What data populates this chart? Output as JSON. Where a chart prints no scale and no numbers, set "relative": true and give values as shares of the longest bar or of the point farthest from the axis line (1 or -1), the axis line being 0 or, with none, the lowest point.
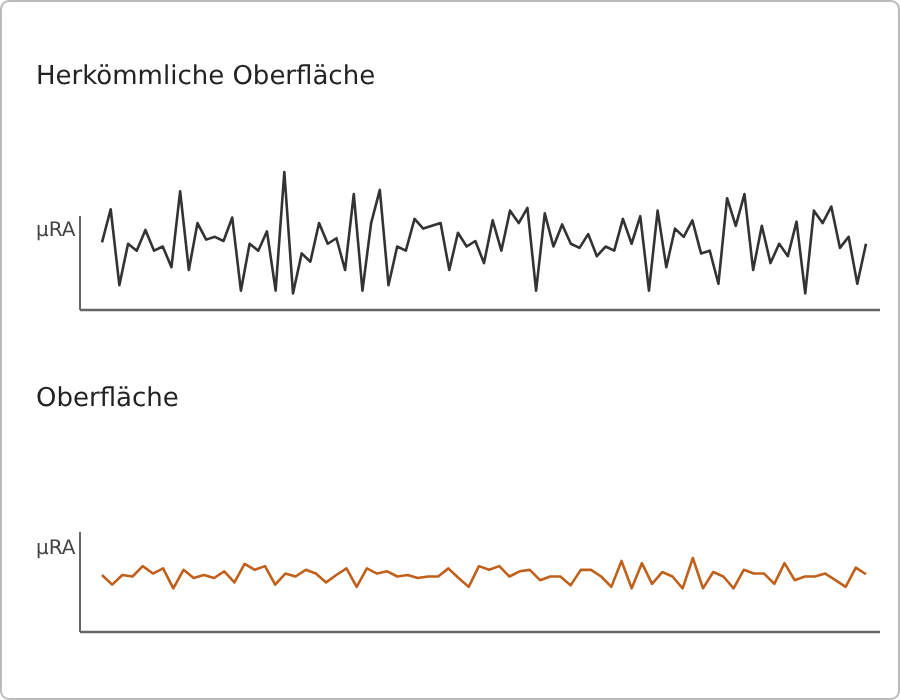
{
  "chart_data": [
    {
      "type": "line",
      "title": "Herkömmliche Oberfläche",
      "ylabel": "µRA",
      "relative": true,
      "categories": [
        null,
        null,
        null,
        null,
        null,
        null,
        null,
        null,
        null,
        null,
        null,
        null,
        null,
        null,
        null,
        null,
        null,
        null,
        null,
        null,
        null,
        null,
        null,
        null,
        null,
        null,
        null,
        null,
        null,
        null,
        null,
        null,
        null,
        null,
        null,
        null,
        null,
        null,
        null,
        null,
        null,
        null,
        null,
        null,
        null,
        null,
        null,
        null,
        null,
        null,
        null,
        null,
        null,
        null,
        null,
        null,
        null,
        null,
        null,
        null,
        null,
        null,
        null,
        null,
        null,
        null,
        null,
        null,
        null,
        null,
        null,
        null,
        null,
        null,
        null,
        null,
        null,
        null,
        null,
        null,
        null,
        null,
        null,
        null,
        null,
        null,
        null,
        null,
        null
      ],
      "series": [
        {
          "color": "#333333",
          "values": [
            0.49,
            0.73,
            0.18,
            0.48,
            0.43,
            0.58,
            0.43,
            0.46,
            0.31,
            0.86,
            0.29,
            0.63,
            0.51,
            0.53,
            0.5,
            0.67,
            0.14,
            0.48,
            0.43,
            0.57,
            0.14,
            1.0,
            0.12,
            0.41,
            0.35,
            0.63,
            0.48,
            0.52,
            0.29,
            0.84,
            0.14,
            0.63,
            0.87,
            0.18,
            0.46,
            0.43,
            0.66,
            0.59,
            0.61,
            0.63,
            0.29,
            0.56,
            0.46,
            0.5,
            0.34,
            0.65,
            0.43,
            0.72,
            0.63,
            0.74,
            0.14,
            0.7,
            0.46,
            0.62,
            0.48,
            0.45,
            0.55,
            0.39,
            0.46,
            0.43,
            0.66,
            0.48,
            0.68,
            0.14,
            0.72,
            0.31,
            0.59,
            0.53,
            0.65,
            0.41,
            0.43,
            0.19,
            0.81,
            0.61,
            0.84,
            0.29,
            0.61,
            0.34,
            0.48,
            0.39,
            0.64,
            0.12,
            0.72,
            0.63,
            0.75,
            0.45,
            0.53,
            0.19,
            0.48
          ]
        }
      ]
    },
    {
      "type": "line",
      "title": "Oberfläche",
      "ylabel": "µRA",
      "relative": true,
      "categories": [
        null,
        null,
        null,
        null,
        null,
        null,
        null,
        null,
        null,
        null,
        null,
        null,
        null,
        null,
        null,
        null,
        null,
        null,
        null,
        null,
        null,
        null,
        null,
        null,
        null,
        null,
        null,
        null,
        null,
        null,
        null,
        null,
        null,
        null,
        null,
        null,
        null,
        null,
        null,
        null,
        null,
        null,
        null,
        null,
        null,
        null,
        null,
        null,
        null,
        null,
        null,
        null,
        null,
        null,
        null,
        null,
        null,
        null,
        null,
        null,
        null,
        null,
        null,
        null,
        null,
        null,
        null,
        null,
        null,
        null,
        null,
        null,
        null,
        null,
        null,
        null
      ],
      "series": [
        {
          "color": "#c0601a",
          "values": [
            0.77,
            0.64,
            0.77,
            0.75,
            0.89,
            0.79,
            0.86,
            0.59,
            0.84,
            0.73,
            0.77,
            0.73,
            0.82,
            0.67,
            0.92,
            0.84,
            0.89,
            0.64,
            0.79,
            0.75,
            0.84,
            0.79,
            0.67,
            0.77,
            0.86,
            0.61,
            0.86,
            0.79,
            0.82,
            0.75,
            0.77,
            0.73,
            0.75,
            0.75,
            0.86,
            0.73,
            0.61,
            0.89,
            0.84,
            0.89,
            0.75,
            0.82,
            0.84,
            0.7,
            0.75,
            0.75,
            0.63,
            0.84,
            0.84,
            0.75,
            0.61,
            0.96,
            0.59,
            0.93,
            0.65,
            0.81,
            0.75,
            0.59,
            1.0,
            0.59,
            0.81,
            0.75,
            0.59,
            0.84,
            0.79,
            0.79,
            0.65,
            0.93,
            0.7,
            0.75,
            0.75,
            0.79,
            0.7,
            0.61,
            0.87,
            0.78
          ]
        }
      ]
    }
  ]
}
